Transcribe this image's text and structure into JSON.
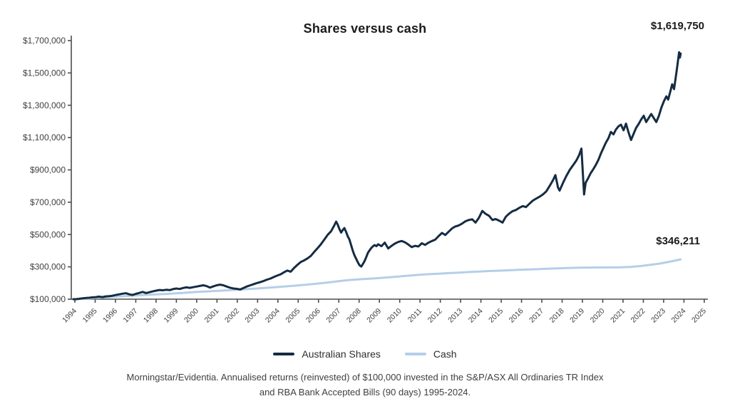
{
  "page": {
    "background": "#ffffff"
  },
  "chart_data": {
    "type": "line",
    "title": "Shares versus cash",
    "xlabel": "",
    "ylabel": "",
    "grid": false,
    "legend_position": "bottom-center",
    "ylim": [
      100000,
      1700000
    ],
    "y_tick_values": [
      100000,
      300000,
      500000,
      700000,
      900000,
      1100000,
      1300000,
      1500000,
      1700000
    ],
    "y_tick_labels": [
      "$100,000",
      "$300,000",
      "$500,000",
      "$700,000",
      "$900,000",
      "$1,100,000",
      "$1,300,000",
      "$1,500,000",
      "$1,700,000"
    ],
    "x_tick_labels": [
      "1994",
      "1995",
      "1996",
      "1997",
      "1998",
      "1999",
      "2000",
      "2001",
      "2002",
      "2003",
      "2004",
      "2005",
      "2006",
      "2007",
      "2008",
      "2009",
      "2010",
      "2011",
      "2012",
      "2013",
      "2014",
      "2015",
      "2016",
      "2017",
      "2018",
      "2019",
      "2020",
      "2021",
      "2022",
      "2023",
      "2024",
      "2025"
    ],
    "end_labels": {
      "shares": "$1,619,750",
      "cash": "$346,211"
    },
    "axis_color": "#4d4d4d",
    "tick_label_color": "#404040",
    "series": [
      {
        "name": "Australian Shares",
        "color": "#152c42",
        "final_value": 1619750,
        "points": [
          [
            1994.9,
            100000
          ],
          [
            1995.0,
            99500
          ],
          [
            1995.17,
            102000
          ],
          [
            1995.33,
            105000
          ],
          [
            1995.5,
            107000
          ],
          [
            1995.67,
            109000
          ],
          [
            1995.83,
            111000
          ],
          [
            1996.0,
            113000
          ],
          [
            1996.17,
            116000
          ],
          [
            1996.33,
            113000
          ],
          [
            1996.5,
            117000
          ],
          [
            1996.67,
            119000
          ],
          [
            1996.83,
            121000
          ],
          [
            1997.0,
            126000
          ],
          [
            1997.17,
            130000
          ],
          [
            1997.33,
            134000
          ],
          [
            1997.5,
            137000
          ],
          [
            1997.67,
            130000
          ],
          [
            1997.83,
            126000
          ],
          [
            1998.0,
            133000
          ],
          [
            1998.17,
            139000
          ],
          [
            1998.33,
            145000
          ],
          [
            1998.5,
            138000
          ],
          [
            1998.67,
            143000
          ],
          [
            1998.83,
            148000
          ],
          [
            1999.0,
            153000
          ],
          [
            1999.17,
            157000
          ],
          [
            1999.33,
            155000
          ],
          [
            1999.5,
            158000
          ],
          [
            1999.67,
            156000
          ],
          [
            1999.83,
            162000
          ],
          [
            2000.0,
            166000
          ],
          [
            2000.17,
            163000
          ],
          [
            2000.33,
            169000
          ],
          [
            2000.5,
            173000
          ],
          [
            2000.67,
            170000
          ],
          [
            2000.83,
            174000
          ],
          [
            2001.0,
            178000
          ],
          [
            2001.17,
            182000
          ],
          [
            2001.33,
            186000
          ],
          [
            2001.5,
            181000
          ],
          [
            2001.67,
            172000
          ],
          [
            2001.83,
            179000
          ],
          [
            2002.0,
            186000
          ],
          [
            2002.17,
            190000
          ],
          [
            2002.33,
            186000
          ],
          [
            2002.5,
            178000
          ],
          [
            2002.67,
            171000
          ],
          [
            2002.83,
            166000
          ],
          [
            2003.0,
            164000
          ],
          [
            2003.17,
            160000
          ],
          [
            2003.33,
            169000
          ],
          [
            2003.5,
            179000
          ],
          [
            2003.67,
            186000
          ],
          [
            2003.83,
            193000
          ],
          [
            2004.0,
            200000
          ],
          [
            2004.17,
            206000
          ],
          [
            2004.33,
            213000
          ],
          [
            2004.5,
            221000
          ],
          [
            2004.67,
            228000
          ],
          [
            2004.83,
            237000
          ],
          [
            2005.0,
            246000
          ],
          [
            2005.17,
            254000
          ],
          [
            2005.33,
            266000
          ],
          [
            2005.5,
            277000
          ],
          [
            2005.67,
            270000
          ],
          [
            2005.83,
            292000
          ],
          [
            2006.0,
            312000
          ],
          [
            2006.17,
            330000
          ],
          [
            2006.33,
            340000
          ],
          [
            2006.5,
            352000
          ],
          [
            2006.67,
            368000
          ],
          [
            2006.83,
            392000
          ],
          [
            2007.0,
            415000
          ],
          [
            2007.17,
            440000
          ],
          [
            2007.33,
            468000
          ],
          [
            2007.5,
            498000
          ],
          [
            2007.67,
            520000
          ],
          [
            2007.83,
            556000
          ],
          [
            2007.92,
            580000
          ],
          [
            2008.0,
            562000
          ],
          [
            2008.08,
            535000
          ],
          [
            2008.17,
            512000
          ],
          [
            2008.25,
            528000
          ],
          [
            2008.33,
            540000
          ],
          [
            2008.42,
            515000
          ],
          [
            2008.5,
            488000
          ],
          [
            2008.58,
            470000
          ],
          [
            2008.67,
            432000
          ],
          [
            2008.75,
            398000
          ],
          [
            2008.83,
            372000
          ],
          [
            2008.92,
            348000
          ],
          [
            2009.0,
            328000
          ],
          [
            2009.08,
            310000
          ],
          [
            2009.17,
            302000
          ],
          [
            2009.25,
            318000
          ],
          [
            2009.33,
            336000
          ],
          [
            2009.42,
            362000
          ],
          [
            2009.5,
            388000
          ],
          [
            2009.58,
            402000
          ],
          [
            2009.67,
            418000
          ],
          [
            2009.75,
            428000
          ],
          [
            2009.83,
            435000
          ],
          [
            2009.92,
            428000
          ],
          [
            2010.0,
            440000
          ],
          [
            2010.17,
            428000
          ],
          [
            2010.33,
            450000
          ],
          [
            2010.5,
            414000
          ],
          [
            2010.67,
            430000
          ],
          [
            2010.83,
            444000
          ],
          [
            2011.0,
            454000
          ],
          [
            2011.17,
            460000
          ],
          [
            2011.33,
            452000
          ],
          [
            2011.5,
            438000
          ],
          [
            2011.67,
            422000
          ],
          [
            2011.83,
            430000
          ],
          [
            2012.0,
            426000
          ],
          [
            2012.17,
            446000
          ],
          [
            2012.33,
            436000
          ],
          [
            2012.5,
            450000
          ],
          [
            2012.67,
            460000
          ],
          [
            2012.83,
            468000
          ],
          [
            2013.0,
            490000
          ],
          [
            2013.17,
            510000
          ],
          [
            2013.33,
            497000
          ],
          [
            2013.5,
            518000
          ],
          [
            2013.67,
            538000
          ],
          [
            2013.83,
            550000
          ],
          [
            2014.0,
            556000
          ],
          [
            2014.17,
            568000
          ],
          [
            2014.33,
            582000
          ],
          [
            2014.5,
            590000
          ],
          [
            2014.67,
            594000
          ],
          [
            2014.83,
            574000
          ],
          [
            2015.0,
            604000
          ],
          [
            2015.17,
            646000
          ],
          [
            2015.33,
            628000
          ],
          [
            2015.5,
            616000
          ],
          [
            2015.67,
            590000
          ],
          [
            2015.83,
            596000
          ],
          [
            2016.0,
            586000
          ],
          [
            2016.17,
            574000
          ],
          [
            2016.33,
            610000
          ],
          [
            2016.5,
            630000
          ],
          [
            2016.67,
            645000
          ],
          [
            2016.83,
            652000
          ],
          [
            2017.0,
            665000
          ],
          [
            2017.17,
            676000
          ],
          [
            2017.33,
            670000
          ],
          [
            2017.5,
            690000
          ],
          [
            2017.67,
            710000
          ],
          [
            2017.83,
            722000
          ],
          [
            2018.0,
            734000
          ],
          [
            2018.17,
            748000
          ],
          [
            2018.33,
            766000
          ],
          [
            2018.5,
            800000
          ],
          [
            2018.67,
            836000
          ],
          [
            2018.79,
            868000
          ],
          [
            2018.92,
            790000
          ],
          [
            2019.0,
            772000
          ],
          [
            2019.17,
            820000
          ],
          [
            2019.33,
            862000
          ],
          [
            2019.5,
            900000
          ],
          [
            2019.67,
            930000
          ],
          [
            2019.83,
            958000
          ],
          [
            2019.96,
            990000
          ],
          [
            2020.08,
            1032000
          ],
          [
            2020.21,
            748000
          ],
          [
            2020.29,
            820000
          ],
          [
            2020.42,
            850000
          ],
          [
            2020.54,
            880000
          ],
          [
            2020.67,
            905000
          ],
          [
            2020.79,
            930000
          ],
          [
            2020.92,
            962000
          ],
          [
            2021.04,
            1000000
          ],
          [
            2021.17,
            1035000
          ],
          [
            2021.29,
            1068000
          ],
          [
            2021.42,
            1096000
          ],
          [
            2021.54,
            1135000
          ],
          [
            2021.67,
            1120000
          ],
          [
            2021.79,
            1150000
          ],
          [
            2021.92,
            1170000
          ],
          [
            2022.04,
            1180000
          ],
          [
            2022.17,
            1145000
          ],
          [
            2022.29,
            1186000
          ],
          [
            2022.42,
            1130000
          ],
          [
            2022.54,
            1085000
          ],
          [
            2022.67,
            1125000
          ],
          [
            2022.79,
            1160000
          ],
          [
            2022.92,
            1185000
          ],
          [
            2023.04,
            1212000
          ],
          [
            2023.17,
            1235000
          ],
          [
            2023.29,
            1196000
          ],
          [
            2023.42,
            1222000
          ],
          [
            2023.54,
            1246000
          ],
          [
            2023.67,
            1220000
          ],
          [
            2023.79,
            1196000
          ],
          [
            2023.92,
            1235000
          ],
          [
            2024.04,
            1285000
          ],
          [
            2024.17,
            1325000
          ],
          [
            2024.29,
            1355000
          ],
          [
            2024.38,
            1335000
          ],
          [
            2024.5,
            1392000
          ],
          [
            2024.58,
            1430000
          ],
          [
            2024.67,
            1400000
          ],
          [
            2024.75,
            1470000
          ],
          [
            2024.83,
            1540000
          ],
          [
            2024.92,
            1628000
          ],
          [
            2024.96,
            1595000
          ],
          [
            2025.0,
            1619750
          ]
        ]
      },
      {
        "name": "Cash",
        "color": "#b4cfe8",
        "final_value": 346211,
        "points": [
          [
            1994.9,
            100000
          ],
          [
            1995.5,
            103500
          ],
          [
            1996.0,
            107500
          ],
          [
            1996.5,
            111500
          ],
          [
            1997.0,
            116000
          ],
          [
            1997.5,
            119500
          ],
          [
            1998.0,
            123500
          ],
          [
            1998.5,
            126500
          ],
          [
            1999.0,
            129500
          ],
          [
            1999.5,
            132500
          ],
          [
            2000.0,
            136000
          ],
          [
            2000.5,
            140000
          ],
          [
            2001.0,
            144500
          ],
          [
            2001.5,
            148000
          ],
          [
            2002.0,
            151000
          ],
          [
            2002.5,
            154500
          ],
          [
            2003.0,
            158000
          ],
          [
            2003.5,
            162000
          ],
          [
            2004.0,
            166000
          ],
          [
            2004.5,
            170500
          ],
          [
            2005.0,
            175000
          ],
          [
            2005.5,
            180000
          ],
          [
            2006.0,
            185000
          ],
          [
            2006.5,
            190500
          ],
          [
            2007.0,
            196500
          ],
          [
            2007.5,
            203000
          ],
          [
            2008.0,
            210500
          ],
          [
            2008.5,
            217500
          ],
          [
            2009.0,
            222500
          ],
          [
            2009.5,
            226000
          ],
          [
            2010.0,
            230000
          ],
          [
            2010.5,
            235000
          ],
          [
            2011.0,
            240000
          ],
          [
            2011.5,
            245500
          ],
          [
            2012.0,
            250500
          ],
          [
            2012.5,
            254500
          ],
          [
            2013.0,
            258000
          ],
          [
            2013.5,
            261500
          ],
          [
            2014.0,
            264500
          ],
          [
            2014.5,
            268000
          ],
          [
            2015.0,
            271000
          ],
          [
            2015.5,
            274000
          ],
          [
            2016.0,
            276500
          ],
          [
            2016.5,
            279000
          ],
          [
            2017.0,
            281500
          ],
          [
            2017.5,
            284000
          ],
          [
            2018.0,
            286500
          ],
          [
            2018.5,
            289000
          ],
          [
            2019.0,
            291500
          ],
          [
            2019.5,
            293500
          ],
          [
            2020.0,
            295000
          ],
          [
            2020.5,
            295800
          ],
          [
            2021.0,
            296200
          ],
          [
            2021.5,
            296500
          ],
          [
            2022.0,
            297200
          ],
          [
            2022.5,
            299500
          ],
          [
            2023.0,
            305000
          ],
          [
            2023.5,
            312500
          ],
          [
            2024.0,
            321000
          ],
          [
            2024.5,
            333000
          ],
          [
            2025.0,
            346211
          ]
        ]
      }
    ],
    "footnote_line1": "Morningstar/Evidentia. Annualised returns (reinvested) of $100,000 invested in the S&P/ASX All Ordinaries TR Index",
    "footnote_line2": "and RBA Bank Accepted Bills (90 days) 1995-2024."
  }
}
